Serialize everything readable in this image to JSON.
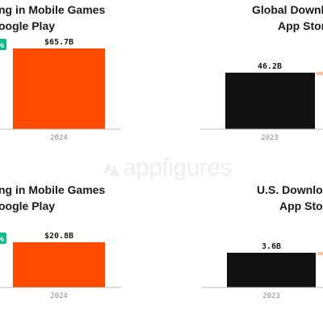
{
  "watermark": {
    "text": "appfigures"
  },
  "colors": {
    "bar_orange": "#ff4a00",
    "bar_black": "#111111",
    "badge_green": "#12b886",
    "baseline": "#bdbdbd",
    "title": "#1a1a1a",
    "tick": "#8a8a8a"
  },
  "chart_data": [
    {
      "type": "bar",
      "title_lines": [
        "ng in Mobile Games",
        "oogle Play"
      ],
      "categories": [
        "2024"
      ],
      "values": [
        65.7
      ],
      "value_labels": [
        "$65.7B"
      ],
      "badge": "%",
      "unit": "B",
      "color": "#ff4a00"
    },
    {
      "type": "bar",
      "title_lines": [
        "Global Downlo",
        "App Stor"
      ],
      "categories": [
        "2023"
      ],
      "values": [
        46.2
      ],
      "value_labels": [
        "46.2B"
      ],
      "unit": "B",
      "color": "#111111"
    },
    {
      "type": "bar",
      "title_lines": [
        "ng in Mobile Games",
        "oogle Play"
      ],
      "categories": [
        "2024"
      ],
      "values": [
        20.8
      ],
      "value_labels": [
        "$20.8B"
      ],
      "badge": "%",
      "unit": "B",
      "color": "#ff4a00"
    },
    {
      "type": "bar",
      "title_lines": [
        "U.S. Downlo",
        "App Stor"
      ],
      "categories": [
        "2023"
      ],
      "values": [
        3.6
      ],
      "value_labels": [
        "3.6B"
      ],
      "unit": "B",
      "color": "#111111"
    }
  ]
}
